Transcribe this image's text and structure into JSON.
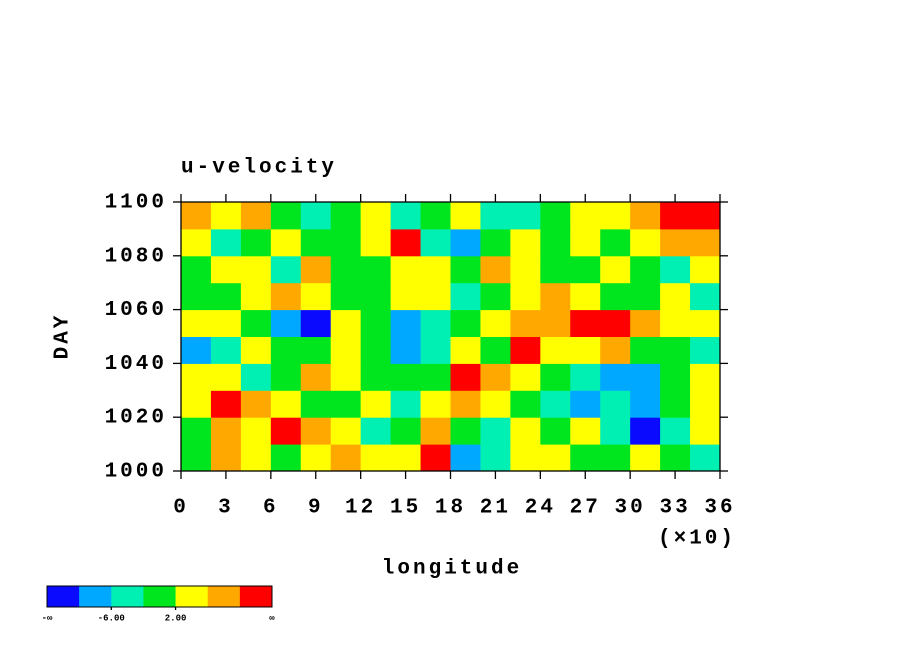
{
  "chart_data": {
    "type": "heatmap",
    "title": "u-velocity",
    "xlabel": "longitude",
    "ylabel": "DAY",
    "x_multiplier": "(×10)",
    "xlim": [
      0,
      36
    ],
    "ylim": [
      1000,
      1100
    ],
    "xticks": [
      0,
      3,
      6,
      9,
      12,
      15,
      18,
      21,
      24,
      27,
      30,
      33,
      36
    ],
    "yticks": [
      1000,
      1020,
      1040,
      1060,
      1080,
      1100
    ],
    "x": [
      1,
      3,
      5,
      7,
      9,
      11,
      13,
      15,
      17,
      19,
      21,
      23,
      25,
      27,
      29,
      31,
      33,
      35
    ],
    "y": [
      1005,
      1015,
      1025,
      1035,
      1045,
      1055,
      1065,
      1075,
      1085,
      1095
    ],
    "z": [
      [
        -2,
        6,
        4,
        0,
        2,
        8,
        4,
        2,
        10,
        -10,
        -4,
        2,
        4,
        0,
        -2,
        2,
        0,
        -4
      ],
      [
        0,
        8,
        4,
        10,
        6,
        2,
        -4,
        -2,
        6,
        0,
        -6,
        2,
        0,
        4,
        -4,
        -12,
        -6,
        2
      ],
      [
        4,
        10,
        6,
        2,
        0,
        -2,
        4,
        -4,
        2,
        6,
        2,
        -2,
        -4,
        -8,
        -6,
        -10,
        0,
        4
      ],
      [
        2,
        4,
        -4,
        0,
        6,
        2,
        -2,
        0,
        0,
        10,
        8,
        2,
        0,
        -4,
        -10,
        -8,
        0,
        2
      ],
      [
        -10,
        -6,
        2,
        0,
        -2,
        4,
        0,
        -8,
        -4,
        2,
        0,
        10,
        4,
        2,
        6,
        0,
        -2,
        -6
      ],
      [
        4,
        2,
        0,
        -8,
        -12,
        2,
        -2,
        -10,
        -6,
        0,
        2,
        6,
        8,
        12,
        10,
        6,
        2,
        4
      ],
      [
        -2,
        0,
        4,
        6,
        2,
        -2,
        0,
        4,
        2,
        -4,
        0,
        2,
        6,
        4,
        -2,
        0,
        2,
        -4
      ],
      [
        0,
        4,
        2,
        -4,
        6,
        0,
        -2,
        2,
        4,
        0,
        8,
        2,
        -2,
        0,
        4,
        -2,
        -6,
        2
      ],
      [
        2,
        -6,
        0,
        4,
        -2,
        0,
        4,
        10,
        -4,
        -8,
        -2,
        4,
        0,
        2,
        0,
        4,
        8,
        6
      ],
      [
        8,
        4,
        6,
        0,
        -4,
        -2,
        2,
        -4,
        0,
        2,
        -4,
        -6,
        0,
        4,
        2,
        8,
        10,
        12
      ]
    ],
    "levels": [
      -10,
      -6,
      -2,
      2,
      6,
      10
    ],
    "colors": [
      "#0a0aff",
      "#00a8ff",
      "#00f0b4",
      "#00e61e",
      "#ffff00",
      "#ffa800",
      "#ff0000"
    ],
    "colorbar_labels": [
      {
        "value": null,
        "label": "-∞"
      },
      {
        "value": -6,
        "label": "-6.00"
      },
      {
        "value": 2,
        "label": "2.00"
      },
      {
        "value": null,
        "label": "∞"
      }
    ]
  }
}
